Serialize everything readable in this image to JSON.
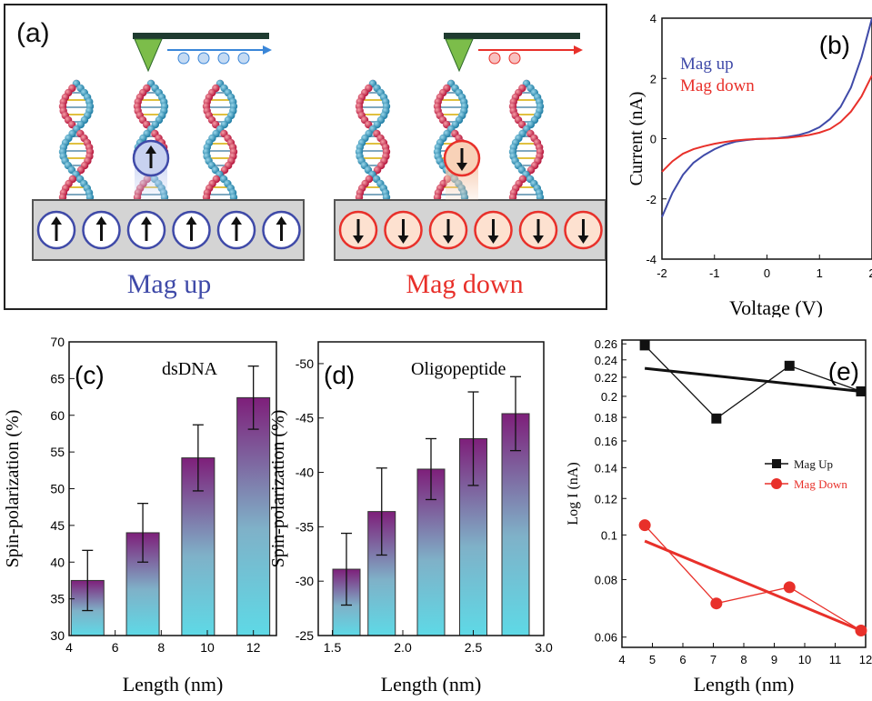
{
  "panel_a": {
    "label": "(a)",
    "left_caption": "Mag up",
    "right_caption": "Mag down",
    "colors": {
      "up": "#3f4aa8",
      "down": "#e8302a"
    }
  },
  "chart_data": [
    {
      "panel": "(b)",
      "type": "line",
      "title": "",
      "xlabel": "Voltage (V)",
      "ylabel": "Current (nA)",
      "xlim": [
        -2,
        2
      ],
      "ylim": [
        -4,
        4
      ],
      "xticks": [
        "-2",
        "-1",
        "0",
        "1",
        "2"
      ],
      "yticks": [
        "-4",
        "-2",
        "0",
        "2",
        "4"
      ],
      "series": [
        {
          "name": "Mag up",
          "color": "#3f4aa8",
          "x": [
            -2,
            -1.8,
            -1.6,
            -1.4,
            -1.2,
            -1.0,
            -0.8,
            -0.6,
            -0.4,
            -0.2,
            0,
            0.2,
            0.4,
            0.6,
            0.8,
            1.0,
            1.2,
            1.4,
            1.6,
            1.8,
            2.0
          ],
          "y": [
            -2.6,
            -1.8,
            -1.2,
            -0.8,
            -0.55,
            -0.35,
            -0.2,
            -0.1,
            -0.05,
            -0.01,
            0,
            0.02,
            0.06,
            0.12,
            0.22,
            0.38,
            0.65,
            1.05,
            1.7,
            2.7,
            4.0
          ]
        },
        {
          "name": "Mag down",
          "color": "#e8302a",
          "x": [
            -2,
            -1.8,
            -1.6,
            -1.4,
            -1.2,
            -1.0,
            -0.8,
            -0.6,
            -0.4,
            -0.2,
            0,
            0.2,
            0.4,
            0.6,
            0.8,
            1.0,
            1.2,
            1.4,
            1.6,
            1.8,
            2.0
          ],
          "y": [
            -1.1,
            -0.75,
            -0.5,
            -0.35,
            -0.25,
            -0.17,
            -0.11,
            -0.06,
            -0.03,
            -0.01,
            0,
            0.01,
            0.03,
            0.07,
            0.12,
            0.2,
            0.32,
            0.55,
            0.9,
            1.4,
            2.1
          ]
        }
      ]
    },
    {
      "panel": "(c)",
      "type": "bar",
      "title": "dsDNA",
      "xlabel": "Length (nm)",
      "ylabel": "Spin-polarization (%)",
      "xlim": [
        4,
        13
      ],
      "ylim": [
        30,
        70
      ],
      "xticks": [
        "4",
        "6",
        "8",
        "10",
        "12"
      ],
      "yticks": [
        "30",
        "35",
        "40",
        "45",
        "50",
        "55",
        "60",
        "65",
        "70"
      ],
      "x": [
        4.8,
        7.2,
        9.6,
        12.0
      ],
      "values": [
        37.5,
        44,
        54.2,
        62.4
      ],
      "errors": [
        4.1,
        4.0,
        4.5,
        4.3
      ]
    },
    {
      "panel": "(d)",
      "type": "bar",
      "title": "Oligopeptide",
      "xlabel": "Length (nm)",
      "ylabel": "Spin-polarization (%)",
      "xlim": [
        1.4,
        3.0
      ],
      "ylim": [
        -25,
        -52
      ],
      "xticks": [
        "1.5",
        "2.0",
        "2.5",
        "3.0"
      ],
      "yticks": [
        "-25",
        "-30",
        "-35",
        "-40",
        "-45",
        "-50"
      ],
      "x": [
        1.6,
        1.85,
        2.2,
        2.5,
        2.8
      ],
      "values": [
        -31.1,
        -36.4,
        -40.3,
        -43.1,
        -45.4
      ],
      "errors": [
        3.3,
        4.0,
        2.8,
        4.3,
        3.4
      ]
    },
    {
      "panel": "(e)",
      "type": "line",
      "title": "",
      "xlabel": "Length (nm)",
      "ylabel": "Log I (nA)",
      "xlim": [
        4,
        12
      ],
      "ylim": [
        0.057,
        0.265
      ],
      "log_y": true,
      "xticks": [
        "4",
        "5",
        "6",
        "7",
        "8",
        "9",
        "10",
        "11",
        "12"
      ],
      "yticks": [
        "0.06",
        "0.08",
        "0.1",
        "0.12",
        "0.14",
        "0.16",
        "0.18",
        "0.2",
        "0.22",
        "0.24",
        "0.26"
      ],
      "series": [
        {
          "name": "Mag Up",
          "color": "#111111",
          "marker": "square",
          "x": [
            4.75,
            7.1,
            9.5,
            11.85
          ],
          "y": [
            0.258,
            0.179,
            0.233,
            0.205
          ],
          "fit": [
            0.23,
            0.205
          ]
        },
        {
          "name": "Mag Down",
          "color": "#e8302a",
          "marker": "circle",
          "x": [
            4.75,
            7.1,
            9.5,
            11.85
          ],
          "y": [
            0.105,
            0.071,
            0.077,
            0.062
          ],
          "fit": [
            0.097,
            0.062
          ]
        }
      ]
    }
  ]
}
